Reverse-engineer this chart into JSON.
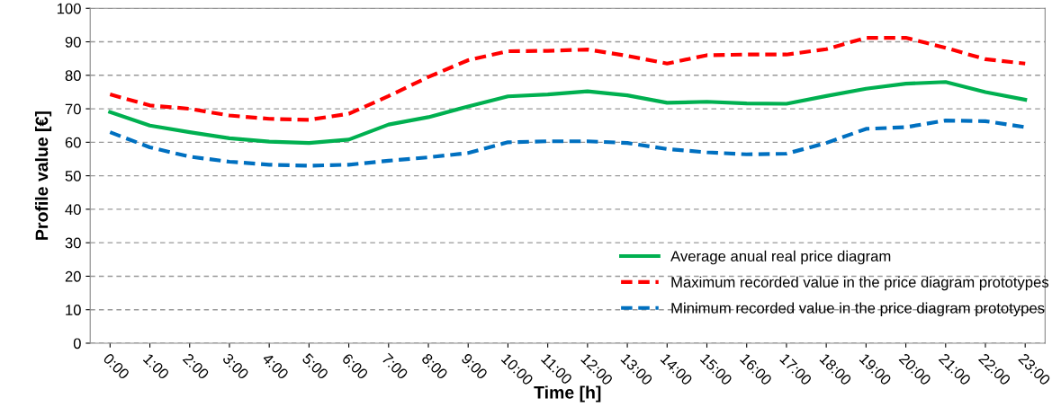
{
  "chart_data": {
    "type": "line",
    "xlabel": "Time [h]",
    "ylabel": "Profile value [€]",
    "categories": [
      "0:00",
      "1:00",
      "2:00",
      "3:00",
      "4:00",
      "5:00",
      "6:00",
      "7:00",
      "8:00",
      "9:00",
      "10:00",
      "11:00",
      "12:00",
      "13:00",
      "14:00",
      "15:00",
      "16:00",
      "17:00",
      "18:00",
      "19:00",
      "20:00",
      "21:00",
      "22:00",
      "23:00"
    ],
    "series": [
      {
        "name": "Average anual real price diagram",
        "color": "#00b050",
        "line_style": "solid",
        "values": [
          69,
          65,
          63,
          61.2,
          60.2,
          59.8,
          60.8,
          65.3,
          67.5,
          70.7,
          73.7,
          74.3,
          75.2,
          74,
          71.8,
          72.1,
          71.6,
          71.5,
          73.8,
          76,
          77.5,
          78,
          75,
          72.7
        ]
      },
      {
        "name": "Maximum recorded value in the price diagram prototypes",
        "color": "#ff0000",
        "line_style": "dashed",
        "values": [
          74.3,
          71,
          70,
          68,
          67,
          66.7,
          68.5,
          73.8,
          79.5,
          84.5,
          87.2,
          87.3,
          87.7,
          85.8,
          83.5,
          86,
          86.2,
          86.2,
          87.8,
          91.2,
          91.2,
          88.2,
          84.8,
          83.5
        ]
      },
      {
        "name": "Minimum recorded value in the price diagram prototypes",
        "color": "#0070c0",
        "line_style": "dashed",
        "values": [
          63,
          58.5,
          55.7,
          54.2,
          53.3,
          53,
          53.3,
          54.5,
          55.5,
          56.8,
          60,
          60.3,
          60.3,
          59.8,
          58,
          57,
          56.4,
          56.6,
          59.8,
          64,
          64.5,
          66.5,
          66.3,
          64.5
        ]
      }
    ],
    "ylim": [
      0,
      100
    ],
    "yticks": [
      0,
      10,
      20,
      30,
      40,
      50,
      60,
      70,
      80,
      90,
      100
    ],
    "grid": "y",
    "legend": "bottom right",
    "marker": "none"
  }
}
